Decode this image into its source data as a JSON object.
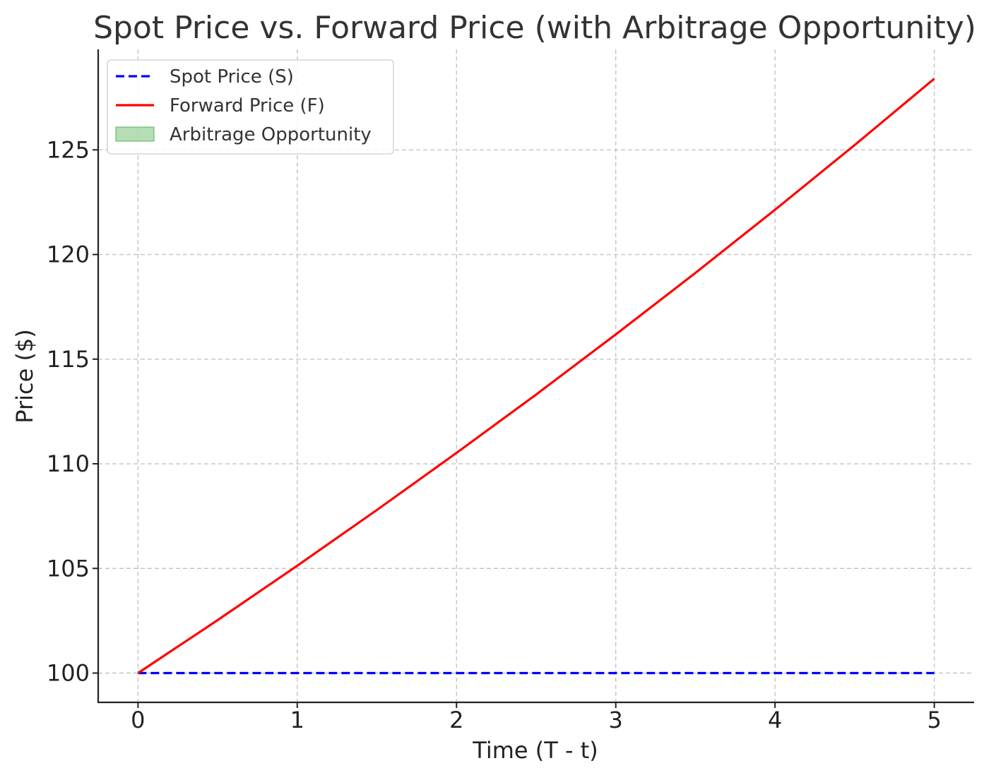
{
  "chart_data": {
    "type": "line",
    "title": "Spot Price vs. Forward Price (with Arbitrage Opportunity)",
    "xlabel": "Time (T - t)",
    "ylabel": "Price ($)",
    "xlim": [
      -0.25,
      5.25
    ],
    "ylim": [
      98.6,
      129.8
    ],
    "xticks": [
      0,
      1,
      2,
      3,
      4,
      5
    ],
    "yticks": [
      100,
      105,
      110,
      115,
      120,
      125
    ],
    "grid": true,
    "legend_position": "top-left",
    "series": [
      {
        "name": "Spot Price (S)",
        "style": "dashed",
        "color": "#0000ff",
        "x": [
          0,
          5
        ],
        "y": [
          100,
          100
        ]
      },
      {
        "name": "Forward Price (F)",
        "style": "solid",
        "color": "#ff0000",
        "x": [
          0,
          0.5,
          1,
          1.5,
          2,
          2.5,
          3,
          3.5,
          4,
          4.5,
          5
        ],
        "y": [
          100,
          102.53,
          105.13,
          107.79,
          110.52,
          113.31,
          116.18,
          119.12,
          122.14,
          125.23,
          128.4
        ]
      }
    ],
    "fill_series": {
      "name": "Arbitrage Opportunity",
      "color": "#2ca02c",
      "between": [
        "Spot Price (S)",
        "Forward Price (F)"
      ],
      "visible_area": false
    }
  }
}
